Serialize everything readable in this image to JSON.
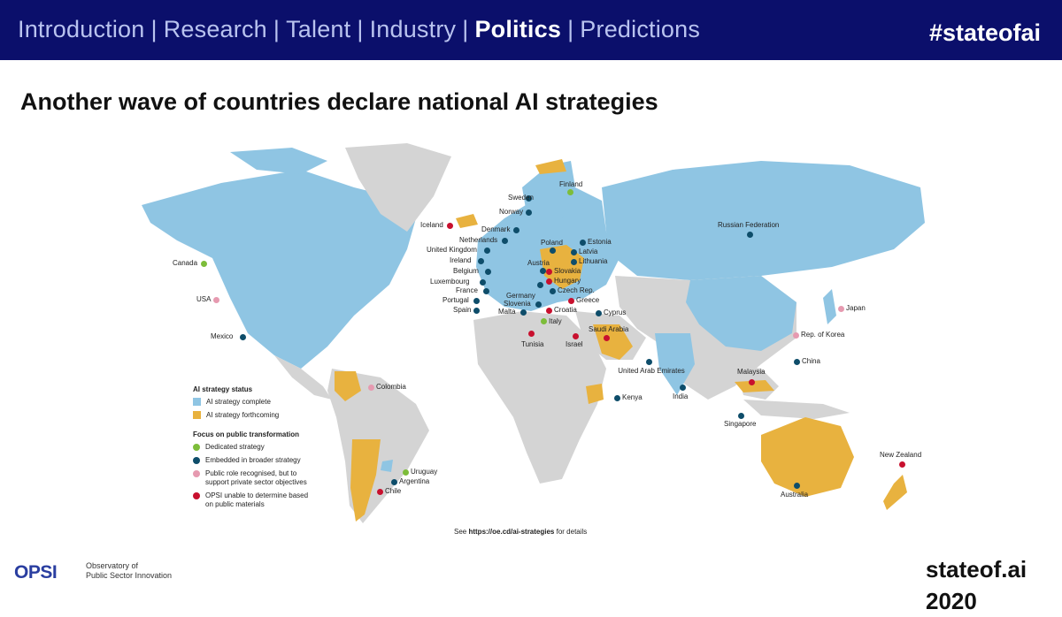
{
  "header": {
    "nav_items": [
      "Introduction",
      "Research",
      "Talent",
      "Industry",
      "Politics",
      "Predictions"
    ],
    "active_item": "Politics",
    "hashtag": "#stateofai"
  },
  "slide": {
    "title": "Another wave of countries declare national AI strategies"
  },
  "colors": {
    "header_bg": "#0b0f6b",
    "strategy_complete": "#8fc5e3",
    "strategy_forthcoming": "#e8b23f",
    "no_strategy": "#d4d4d4",
    "dedicated": "#7dbd3a",
    "embedded": "#0e4d6a",
    "public_role": "#e69ab0",
    "unable": "#c8102e"
  },
  "legend": {
    "status_title": "AI strategy status",
    "status_items": [
      {
        "label": "AI strategy complete",
        "color_key": "strategy_complete"
      },
      {
        "label": "AI strategy forthcoming",
        "color_key": "strategy_forthcoming"
      }
    ],
    "focus_title": "Focus on public transformation",
    "focus_items": [
      {
        "label": "Dedicated strategy",
        "color_key": "dedicated"
      },
      {
        "label": "Embedded in broader strategy",
        "color_key": "embedded"
      },
      {
        "label": "Public role recognised, but to support private sector objectives",
        "color_key": "public_role"
      },
      {
        "label": "OPSI unable to determine based on public materials",
        "color_key": "unable"
      }
    ]
  },
  "countries": [
    {
      "name": "Canada",
      "focus": "dedicated"
    },
    {
      "name": "USA",
      "focus": "public_role"
    },
    {
      "name": "Mexico",
      "focus": "embedded"
    },
    {
      "name": "Colombia",
      "focus": "public_role"
    },
    {
      "name": "Uruguay",
      "focus": "dedicated"
    },
    {
      "name": "Argentina",
      "focus": "embedded"
    },
    {
      "name": "Chile",
      "focus": "unable"
    },
    {
      "name": "Iceland",
      "focus": "unable"
    },
    {
      "name": "Sweden",
      "focus": "embedded"
    },
    {
      "name": "Finland",
      "focus": "dedicated"
    },
    {
      "name": "Norway",
      "focus": "embedded"
    },
    {
      "name": "Denmark",
      "focus": "embedded"
    },
    {
      "name": "Netherlands",
      "focus": "embedded"
    },
    {
      "name": "United Kingdom",
      "focus": "embedded"
    },
    {
      "name": "Ireland",
      "focus": "embedded"
    },
    {
      "name": "Belgium",
      "focus": "embedded"
    },
    {
      "name": "Luxembourg",
      "focus": "embedded"
    },
    {
      "name": "France",
      "focus": "embedded"
    },
    {
      "name": "Portugal",
      "focus": "embedded"
    },
    {
      "name": "Spain",
      "focus": "embedded"
    },
    {
      "name": "Germany",
      "focus": "embedded"
    },
    {
      "name": "Slovenia",
      "focus": "embedded"
    },
    {
      "name": "Malta",
      "focus": "embedded"
    },
    {
      "name": "Austria",
      "focus": "embedded"
    },
    {
      "name": "Poland",
      "focus": "embedded"
    },
    {
      "name": "Estonia",
      "focus": "embedded"
    },
    {
      "name": "Latvia",
      "focus": "embedded"
    },
    {
      "name": "Lithuania",
      "focus": "embedded"
    },
    {
      "name": "Slovakia",
      "focus": "unable"
    },
    {
      "name": "Hungary",
      "focus": "unable"
    },
    {
      "name": "Czech Rep.",
      "focus": "embedded"
    },
    {
      "name": "Greece",
      "focus": "unable"
    },
    {
      "name": "Croatia",
      "focus": "unable"
    },
    {
      "name": "Italy",
      "focus": "dedicated"
    },
    {
      "name": "Cyprus",
      "focus": "embedded"
    },
    {
      "name": "Tunisia",
      "focus": "unable"
    },
    {
      "name": "Israel",
      "focus": "unable"
    },
    {
      "name": "Saudi Arabia",
      "focus": "unable"
    },
    {
      "name": "United Arab Emirates",
      "focus": "embedded"
    },
    {
      "name": "Kenya",
      "focus": "embedded"
    },
    {
      "name": "India",
      "focus": "embedded"
    },
    {
      "name": "Russian Federation",
      "focus": "embedded"
    },
    {
      "name": "China",
      "focus": "embedded"
    },
    {
      "name": "Japan",
      "focus": "public_role"
    },
    {
      "name": "Rep. of Korea",
      "focus": "public_role"
    },
    {
      "name": "Malaysia",
      "focus": "unable"
    },
    {
      "name": "Singapore",
      "focus": "embedded"
    },
    {
      "name": "Australia",
      "focus": "embedded"
    },
    {
      "name": "New Zealand",
      "focus": "unable"
    }
  ],
  "source_note": {
    "prefix": "See ",
    "url": "https://oe.cd/ai-strategies",
    "suffix": " for details"
  },
  "footer": {
    "logo": "OPSI",
    "org_line1": "Observatory of",
    "org_line2": "Public Sector Innovation",
    "brand": "stateof.ai",
    "year": "2020"
  }
}
